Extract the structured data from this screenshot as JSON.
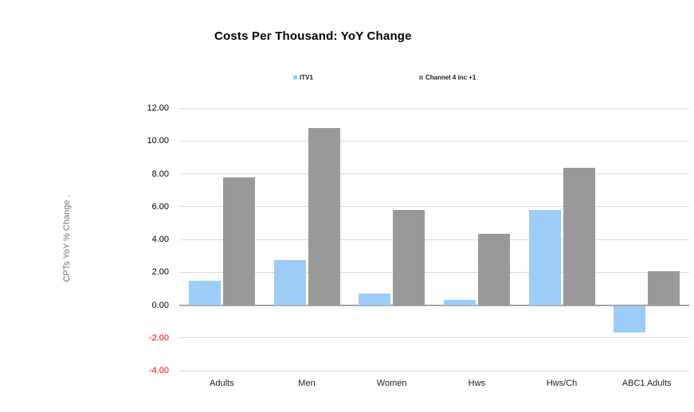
{
  "chart_data": {
    "type": "bar",
    "title": "Costs Per Thousand: YoY Change",
    "ylabel": "CPTs YoY % Change .",
    "xlabel": "",
    "categories": [
      "Adults",
      "Men",
      "Women",
      "Hws",
      "Hws/Ch",
      "ABC1 Adults"
    ],
    "series": [
      {
        "name": "ITV1",
        "color": "#9BCDF8",
        "values": [
          1.5,
          2.75,
          0.7,
          0.3,
          5.8,
          -1.6
        ]
      },
      {
        "name": "Channel 4 inc +1",
        "color": "#999999",
        "values": [
          7.8,
          10.8,
          5.8,
          4.35,
          8.35,
          2.05
        ]
      }
    ],
    "ylim": [
      -4,
      12
    ],
    "ytick_step": 2,
    "ytick_format": "2dp",
    "grid": true,
    "legend_position": "top",
    "colors": {
      "gridline": "#dadada",
      "zero_axis_line": "#a6a6a6",
      "tick_label": "#000000",
      "negative_tick_label": "#ff0000",
      "axis_title": "#757575",
      "title": "#000000",
      "background": "#ffffff"
    }
  }
}
